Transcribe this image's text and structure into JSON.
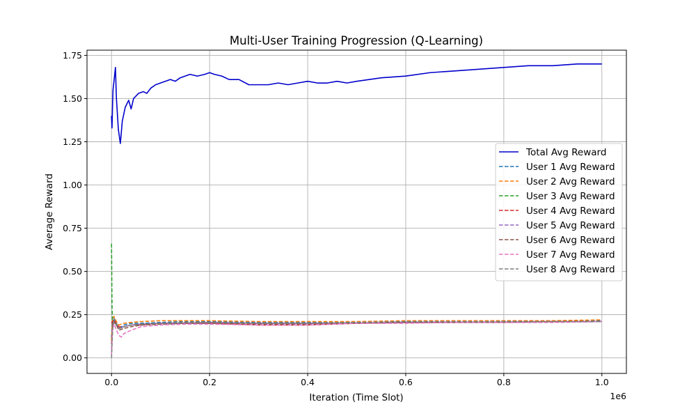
{
  "chart_data": {
    "type": "line",
    "title": "Multi-User Training Progression (Q-Learning)",
    "xlabel": "Iteration (Time Slot)",
    "ylabel": "Average Reward",
    "x_offset_label": "1e6",
    "xlim": [
      -50000,
      1050000
    ],
    "ylim": [
      -0.09,
      1.78
    ],
    "grid": true,
    "legend_position": "center-right",
    "x_ticks": [
      0,
      200000,
      400000,
      600000,
      800000,
      1000000
    ],
    "x_tick_labels": [
      "0.0",
      "0.2",
      "0.4",
      "0.6",
      "0.8",
      "1.0"
    ],
    "y_ticks": [
      0,
      0.25,
      0.5,
      0.75,
      1.0,
      1.25,
      1.5,
      1.75
    ],
    "y_tick_labels": [
      "0.00",
      "0.25",
      "0.50",
      "0.75",
      "1.00",
      "1.25",
      "1.50",
      "1.75"
    ],
    "series": [
      {
        "name": "Total Avg Reward",
        "color": "#0000cc",
        "dash": "solid",
        "x": [
          0,
          1000,
          2000,
          3000,
          5000,
          8000,
          10000,
          14000,
          18000,
          22000,
          28000,
          35000,
          40000,
          45000,
          55000,
          65000,
          72000,
          80000,
          90000,
          100000,
          110000,
          120000,
          130000,
          140000,
          160000,
          175000,
          190000,
          200000,
          210000,
          225000,
          240000,
          260000,
          280000,
          300000,
          320000,
          340000,
          360000,
          380000,
          400000,
          420000,
          440000,
          460000,
          480000,
          500000,
          550000,
          600000,
          650000,
          700000,
          750000,
          800000,
          850000,
          900000,
          950000,
          1000000
        ],
        "y": [
          1.4,
          1.33,
          1.45,
          1.55,
          1.6,
          1.68,
          1.5,
          1.32,
          1.24,
          1.37,
          1.45,
          1.49,
          1.44,
          1.5,
          1.53,
          1.54,
          1.53,
          1.56,
          1.58,
          1.59,
          1.6,
          1.61,
          1.6,
          1.62,
          1.64,
          1.63,
          1.64,
          1.65,
          1.64,
          1.63,
          1.61,
          1.61,
          1.58,
          1.58,
          1.58,
          1.59,
          1.58,
          1.59,
          1.6,
          1.59,
          1.59,
          1.6,
          1.59,
          1.6,
          1.62,
          1.63,
          1.65,
          1.66,
          1.67,
          1.68,
          1.69,
          1.69,
          1.7,
          1.7
        ]
      },
      {
        "name": "User 1 Avg Reward",
        "color": "#1f77b4",
        "dash": "dashed",
        "x": [
          0,
          2000,
          5000,
          10000,
          15000,
          25000,
          40000,
          60000,
          100000,
          150000,
          200000,
          300000,
          400000,
          500000,
          600000,
          700000,
          800000,
          900000,
          1000000
        ],
        "y": [
          0.12,
          0.2,
          0.22,
          0.2,
          0.17,
          0.19,
          0.2,
          0.2,
          0.205,
          0.21,
          0.21,
          0.205,
          0.205,
          0.205,
          0.21,
          0.21,
          0.21,
          0.21,
          0.215
        ]
      },
      {
        "name": "User 2 Avg Reward",
        "color": "#ff7f0e",
        "dash": "dashed",
        "x": [
          0,
          2000,
          5000,
          10000,
          15000,
          25000,
          40000,
          60000,
          100000,
          150000,
          200000,
          300000,
          400000,
          500000,
          600000,
          700000,
          800000,
          900000,
          1000000
        ],
        "y": [
          0.1,
          0.22,
          0.24,
          0.21,
          0.19,
          0.2,
          0.205,
          0.21,
          0.215,
          0.215,
          0.215,
          0.21,
          0.21,
          0.21,
          0.215,
          0.215,
          0.215,
          0.215,
          0.22
        ]
      },
      {
        "name": "User 3 Avg Reward",
        "color": "#2ca02c",
        "dash": "dashed",
        "x": [
          0,
          1000,
          2000,
          5000,
          10000,
          15000,
          25000,
          40000,
          60000,
          100000,
          150000,
          200000,
          300000,
          400000,
          500000,
          600000,
          700000,
          800000,
          900000,
          1000000
        ],
        "y": [
          0.66,
          0.3,
          0.2,
          0.21,
          0.19,
          0.17,
          0.18,
          0.19,
          0.195,
          0.2,
          0.205,
          0.205,
          0.2,
          0.2,
          0.205,
          0.205,
          0.205,
          0.21,
          0.21,
          0.21
        ]
      },
      {
        "name": "User 4 Avg Reward",
        "color": "#d62728",
        "dash": "dashed",
        "x": [
          0,
          2000,
          5000,
          10000,
          15000,
          25000,
          40000,
          60000,
          100000,
          150000,
          200000,
          300000,
          400000,
          500000,
          600000,
          700000,
          800000,
          900000,
          1000000
        ],
        "y": [
          0.2,
          0.21,
          0.22,
          0.2,
          0.18,
          0.18,
          0.19,
          0.19,
          0.2,
          0.2,
          0.2,
          0.19,
          0.19,
          0.2,
          0.205,
          0.205,
          0.21,
          0.21,
          0.21
        ]
      },
      {
        "name": "User 5 Avg Reward",
        "color": "#9467bd",
        "dash": "dashed",
        "x": [
          0,
          2000,
          5000,
          10000,
          15000,
          25000,
          40000,
          60000,
          100000,
          150000,
          200000,
          300000,
          400000,
          500000,
          600000,
          700000,
          800000,
          900000,
          1000000
        ],
        "y": [
          0.05,
          0.18,
          0.21,
          0.19,
          0.17,
          0.18,
          0.19,
          0.195,
          0.2,
          0.2,
          0.205,
          0.2,
          0.2,
          0.2,
          0.205,
          0.205,
          0.205,
          0.205,
          0.21
        ]
      },
      {
        "name": "User 6 Avg Reward",
        "color": "#8c564b",
        "dash": "dashed",
        "x": [
          0,
          2000,
          5000,
          10000,
          15000,
          25000,
          40000,
          60000,
          100000,
          150000,
          200000,
          300000,
          400000,
          500000,
          600000,
          700000,
          800000,
          900000,
          1000000
        ],
        "y": [
          0.08,
          0.2,
          0.21,
          0.19,
          0.16,
          0.17,
          0.18,
          0.19,
          0.195,
          0.2,
          0.2,
          0.195,
          0.195,
          0.2,
          0.205,
          0.205,
          0.205,
          0.21,
          0.21
        ]
      },
      {
        "name": "User 7 Avg Reward",
        "color": "#e377c2",
        "dash": "dashed",
        "x": [
          0,
          2000,
          5000,
          10000,
          15000,
          20000,
          25000,
          40000,
          60000,
          100000,
          150000,
          200000,
          300000,
          400000,
          500000,
          600000,
          700000,
          800000,
          900000,
          1000000
        ],
        "y": [
          0.02,
          0.16,
          0.2,
          0.16,
          0.13,
          0.12,
          0.14,
          0.16,
          0.18,
          0.19,
          0.195,
          0.195,
          0.19,
          0.19,
          0.2,
          0.2,
          0.205,
          0.205,
          0.205,
          0.21
        ]
      },
      {
        "name": "User 8 Avg Reward",
        "color": "#7f7f7f",
        "dash": "dashed",
        "x": [
          0,
          2000,
          5000,
          10000,
          15000,
          25000,
          40000,
          60000,
          100000,
          150000,
          200000,
          300000,
          400000,
          500000,
          600000,
          700000,
          800000,
          900000,
          1000000
        ],
        "y": [
          0.0,
          0.15,
          0.23,
          0.2,
          0.17,
          0.18,
          0.19,
          0.195,
          0.2,
          0.205,
          0.205,
          0.2,
          0.2,
          0.205,
          0.21,
          0.21,
          0.21,
          0.21,
          0.21
        ]
      }
    ]
  }
}
